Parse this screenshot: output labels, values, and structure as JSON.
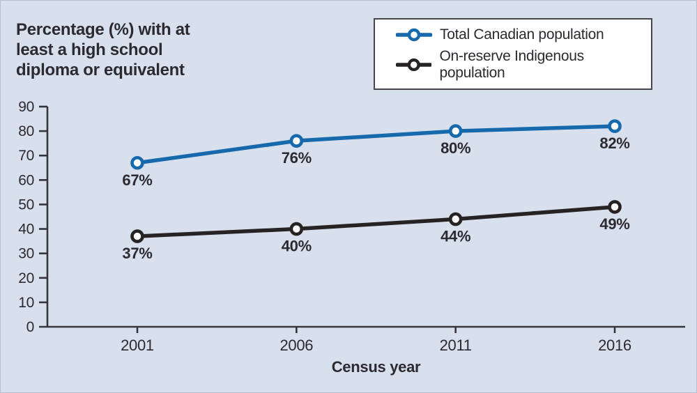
{
  "page": {
    "background_color": "#d9e0ed",
    "border_color": "#b6bfce"
  },
  "title": {
    "text": "Percentage (%) with at\nleast a high school\ndiploma or equivalent"
  },
  "chart_data": {
    "type": "line",
    "x": [
      2001,
      2006,
      2011,
      2016
    ],
    "xlabel": "Census year",
    "ylabel": "Percentage (%) with at least a high school diploma or equivalent",
    "ylim": [
      0,
      90
    ],
    "ytick_step": 10,
    "grid": false,
    "legend_position": "top-right",
    "marker": "open-circle",
    "axis_color": "#35343c",
    "text_color": "#2b2a31",
    "series": [
      {
        "name": "Total Canadian population",
        "color": "#1769ad",
        "values": [
          67,
          76,
          80,
          82
        ],
        "data_labels": [
          "67%",
          "76%",
          "80%",
          "82%"
        ]
      },
      {
        "name": "On-reserve Indigenous population",
        "color": "#272324",
        "values": [
          37,
          40,
          44,
          49
        ],
        "data_labels": [
          "37%",
          "40%",
          "44%",
          "49%"
        ]
      }
    ]
  }
}
